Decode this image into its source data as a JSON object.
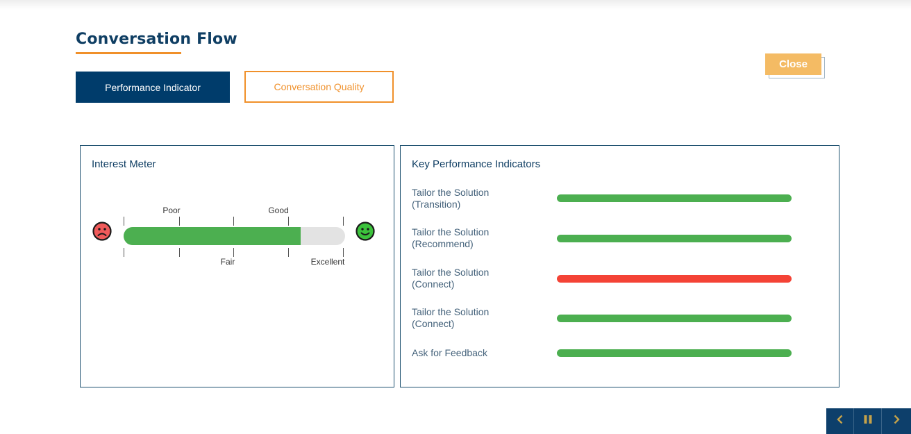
{
  "header": {
    "title": "Conversation Flow",
    "close_label": "Close"
  },
  "tabs": [
    {
      "label": "Performance Indicator",
      "active": true
    },
    {
      "label": "Conversation Quality",
      "active": false
    }
  ],
  "interest_meter": {
    "title": "Interest Meter",
    "level_percent": 80,
    "labels_top": [
      "Poor",
      "Good"
    ],
    "labels_bottom": [
      "Fair",
      "Excellent"
    ]
  },
  "kpi": {
    "title": "Key Performance Indicators",
    "items": [
      {
        "line1": "Tailor the Solution",
        "line2": "(Transition)",
        "status": "good"
      },
      {
        "line1": "Tailor the Solution",
        "line2": "(Recommend)",
        "status": "good"
      },
      {
        "line1": "Tailor the Solution",
        "line2": "(Connect)",
        "status": "bad"
      },
      {
        "line1": "Tailor the Solution",
        "line2": "(Connect)",
        "status": "good"
      },
      {
        "line1": "Ask for Feedback",
        "line2": "",
        "status": "good"
      }
    ]
  },
  "colors": {
    "navy": "#003c6b",
    "orange": "#f0902a",
    "good": "#4caf50",
    "bad": "#f44336",
    "close": "#f4bb64"
  },
  "nav": {
    "icons": [
      "chevron-left-icon",
      "pause-icon",
      "chevron-right-icon"
    ]
  }
}
